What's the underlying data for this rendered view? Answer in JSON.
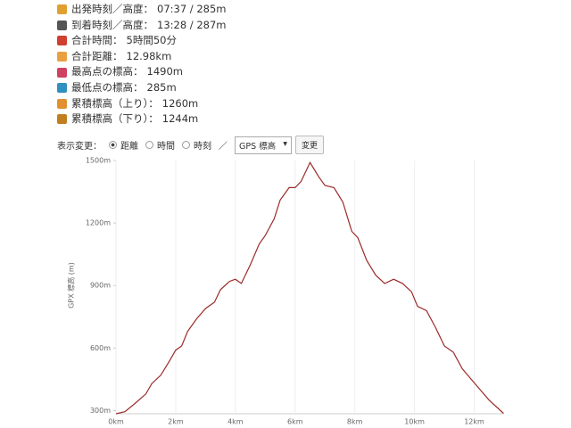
{
  "stats": [
    {
      "label": "出発時刻／高度：",
      "value": "07:37 / 285m"
    },
    {
      "label": "到着時刻／高度：",
      "value": "13:28 / 287m"
    },
    {
      "label": "合計時間：",
      "value": "5時間50分"
    },
    {
      "label": "合計距離：",
      "value": "12.98km"
    },
    {
      "label": "最高点の標高：",
      "value": "1490m"
    },
    {
      "label": "最低点の標高：",
      "value": "285m"
    },
    {
      "label": "累積標高（上り）：",
      "value": "1260m"
    },
    {
      "label": "累積標高（下り）：",
      "value": "1244m"
    }
  ],
  "controls": {
    "label": "表示変更：",
    "options": [
      "距離",
      "時間",
      "時刻"
    ],
    "separator": "／",
    "select": "GPS 標高",
    "button": "変更"
  },
  "chart_data": {
    "type": "line",
    "y_label": "GPX 標高 (m)",
    "color": "#9b2a2a",
    "grid": "x",
    "x": [
      0,
      0.3,
      0.6,
      1.0,
      1.2,
      1.5,
      1.8,
      2.0,
      2.2,
      2.4,
      2.7,
      3.0,
      3.3,
      3.5,
      3.8,
      4.0,
      4.2,
      4.5,
      4.8,
      5.0,
      5.3,
      5.5,
      5.8,
      6.0,
      6.2,
      6.5,
      6.8,
      7.0,
      7.3,
      7.6,
      7.9,
      8.1,
      8.4,
      8.7,
      9.0,
      9.3,
      9.6,
      9.9,
      10.1,
      10.4,
      10.7,
      11.0,
      11.3,
      11.6,
      11.9,
      12.2,
      12.5,
      12.98
    ],
    "values": [
      285,
      295,
      330,
      380,
      430,
      470,
      540,
      590,
      610,
      680,
      740,
      790,
      820,
      880,
      920,
      930,
      910,
      1000,
      1100,
      1140,
      1220,
      1310,
      1370,
      1370,
      1400,
      1490,
      1420,
      1380,
      1370,
      1300,
      1160,
      1130,
      1020,
      950,
      910,
      930,
      910,
      870,
      800,
      780,
      700,
      610,
      580,
      500,
      450,
      400,
      350,
      287
    ],
    "xlim": [
      0,
      13
    ],
    "ylim": [
      285,
      1500
    ],
    "xticks": [
      {
        "value": 0,
        "label": "0km"
      },
      {
        "value": 2,
        "label": "2km"
      },
      {
        "value": 4,
        "label": "4km"
      },
      {
        "value": 6,
        "label": "6km"
      },
      {
        "value": 8,
        "label": "8km"
      },
      {
        "value": 10,
        "label": "10km"
      },
      {
        "value": 12,
        "label": "12km"
      }
    ],
    "yticks": [
      {
        "value": 300,
        "label": "300m"
      },
      {
        "value": 600,
        "label": "600m"
      },
      {
        "value": 900,
        "label": "900m"
      },
      {
        "value": 1200,
        "label": "1200m"
      },
      {
        "value": 1500,
        "label": "1500m"
      }
    ]
  }
}
